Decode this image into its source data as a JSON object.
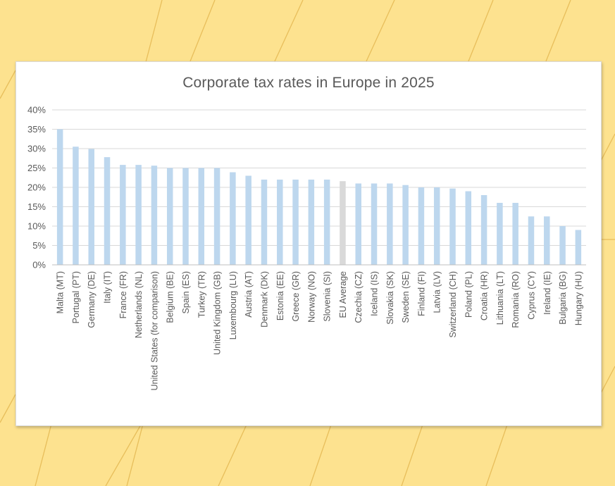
{
  "chart_data": {
    "type": "bar",
    "title": "Corporate tax rates in Europe in 2025",
    "xlabel": "",
    "ylabel": "",
    "ylim": [
      0,
      40
    ],
    "ytick_labels": [
      "0%",
      "5%",
      "10%",
      "15%",
      "20%",
      "25%",
      "30%",
      "35%",
      "40%"
    ],
    "grid": true,
    "categories": [
      "Malta (MT)",
      "Portugal (PT)",
      "Germany (DE)",
      "Italy (IT)",
      "France (FR)",
      "Netherlands (NL)",
      "United States (for comparison)",
      "Belgium (BE)",
      "Spain (ES)",
      "Turkey (TR)",
      "United Kingdom (GB)",
      "Luxembourg (LU)",
      "Austria (AT)",
      "Denmark (DK)",
      "Estonia (EE)",
      "Greece (GR)",
      "Norway (NO)",
      "Slovenia (SI)",
      "EU Average",
      "Czechia (CZ)",
      "Iceland (IS)",
      "Slovakia (SK)",
      "Sweden (SE)",
      "Finland (FI)",
      "Latvia (LV)",
      "Switzerland (CH)",
      "Poland (PL)",
      "Croatia (HR)",
      "Lithuania (LT)",
      "Romania (RO)",
      "Cyprus (CY)",
      "Ireland (IE)",
      "Bulgaria (BG)",
      "Hungary (HU)"
    ],
    "values": [
      35,
      30.5,
      29.9,
      27.8,
      25.8,
      25.8,
      25.6,
      25,
      25,
      25,
      25,
      23.9,
      23,
      22,
      22,
      22,
      22,
      22,
      21.6,
      21,
      21,
      21,
      20.6,
      20,
      20,
      19.7,
      19,
      18,
      16,
      16,
      12.5,
      12.5,
      10,
      9
    ],
    "bar_color": "#bdd7ee",
    "highlight_category": "EU Average",
    "highlight_color": "#d9d9d9",
    "gridline_color": "#d9d9d9",
    "text_color": "#595959"
  }
}
